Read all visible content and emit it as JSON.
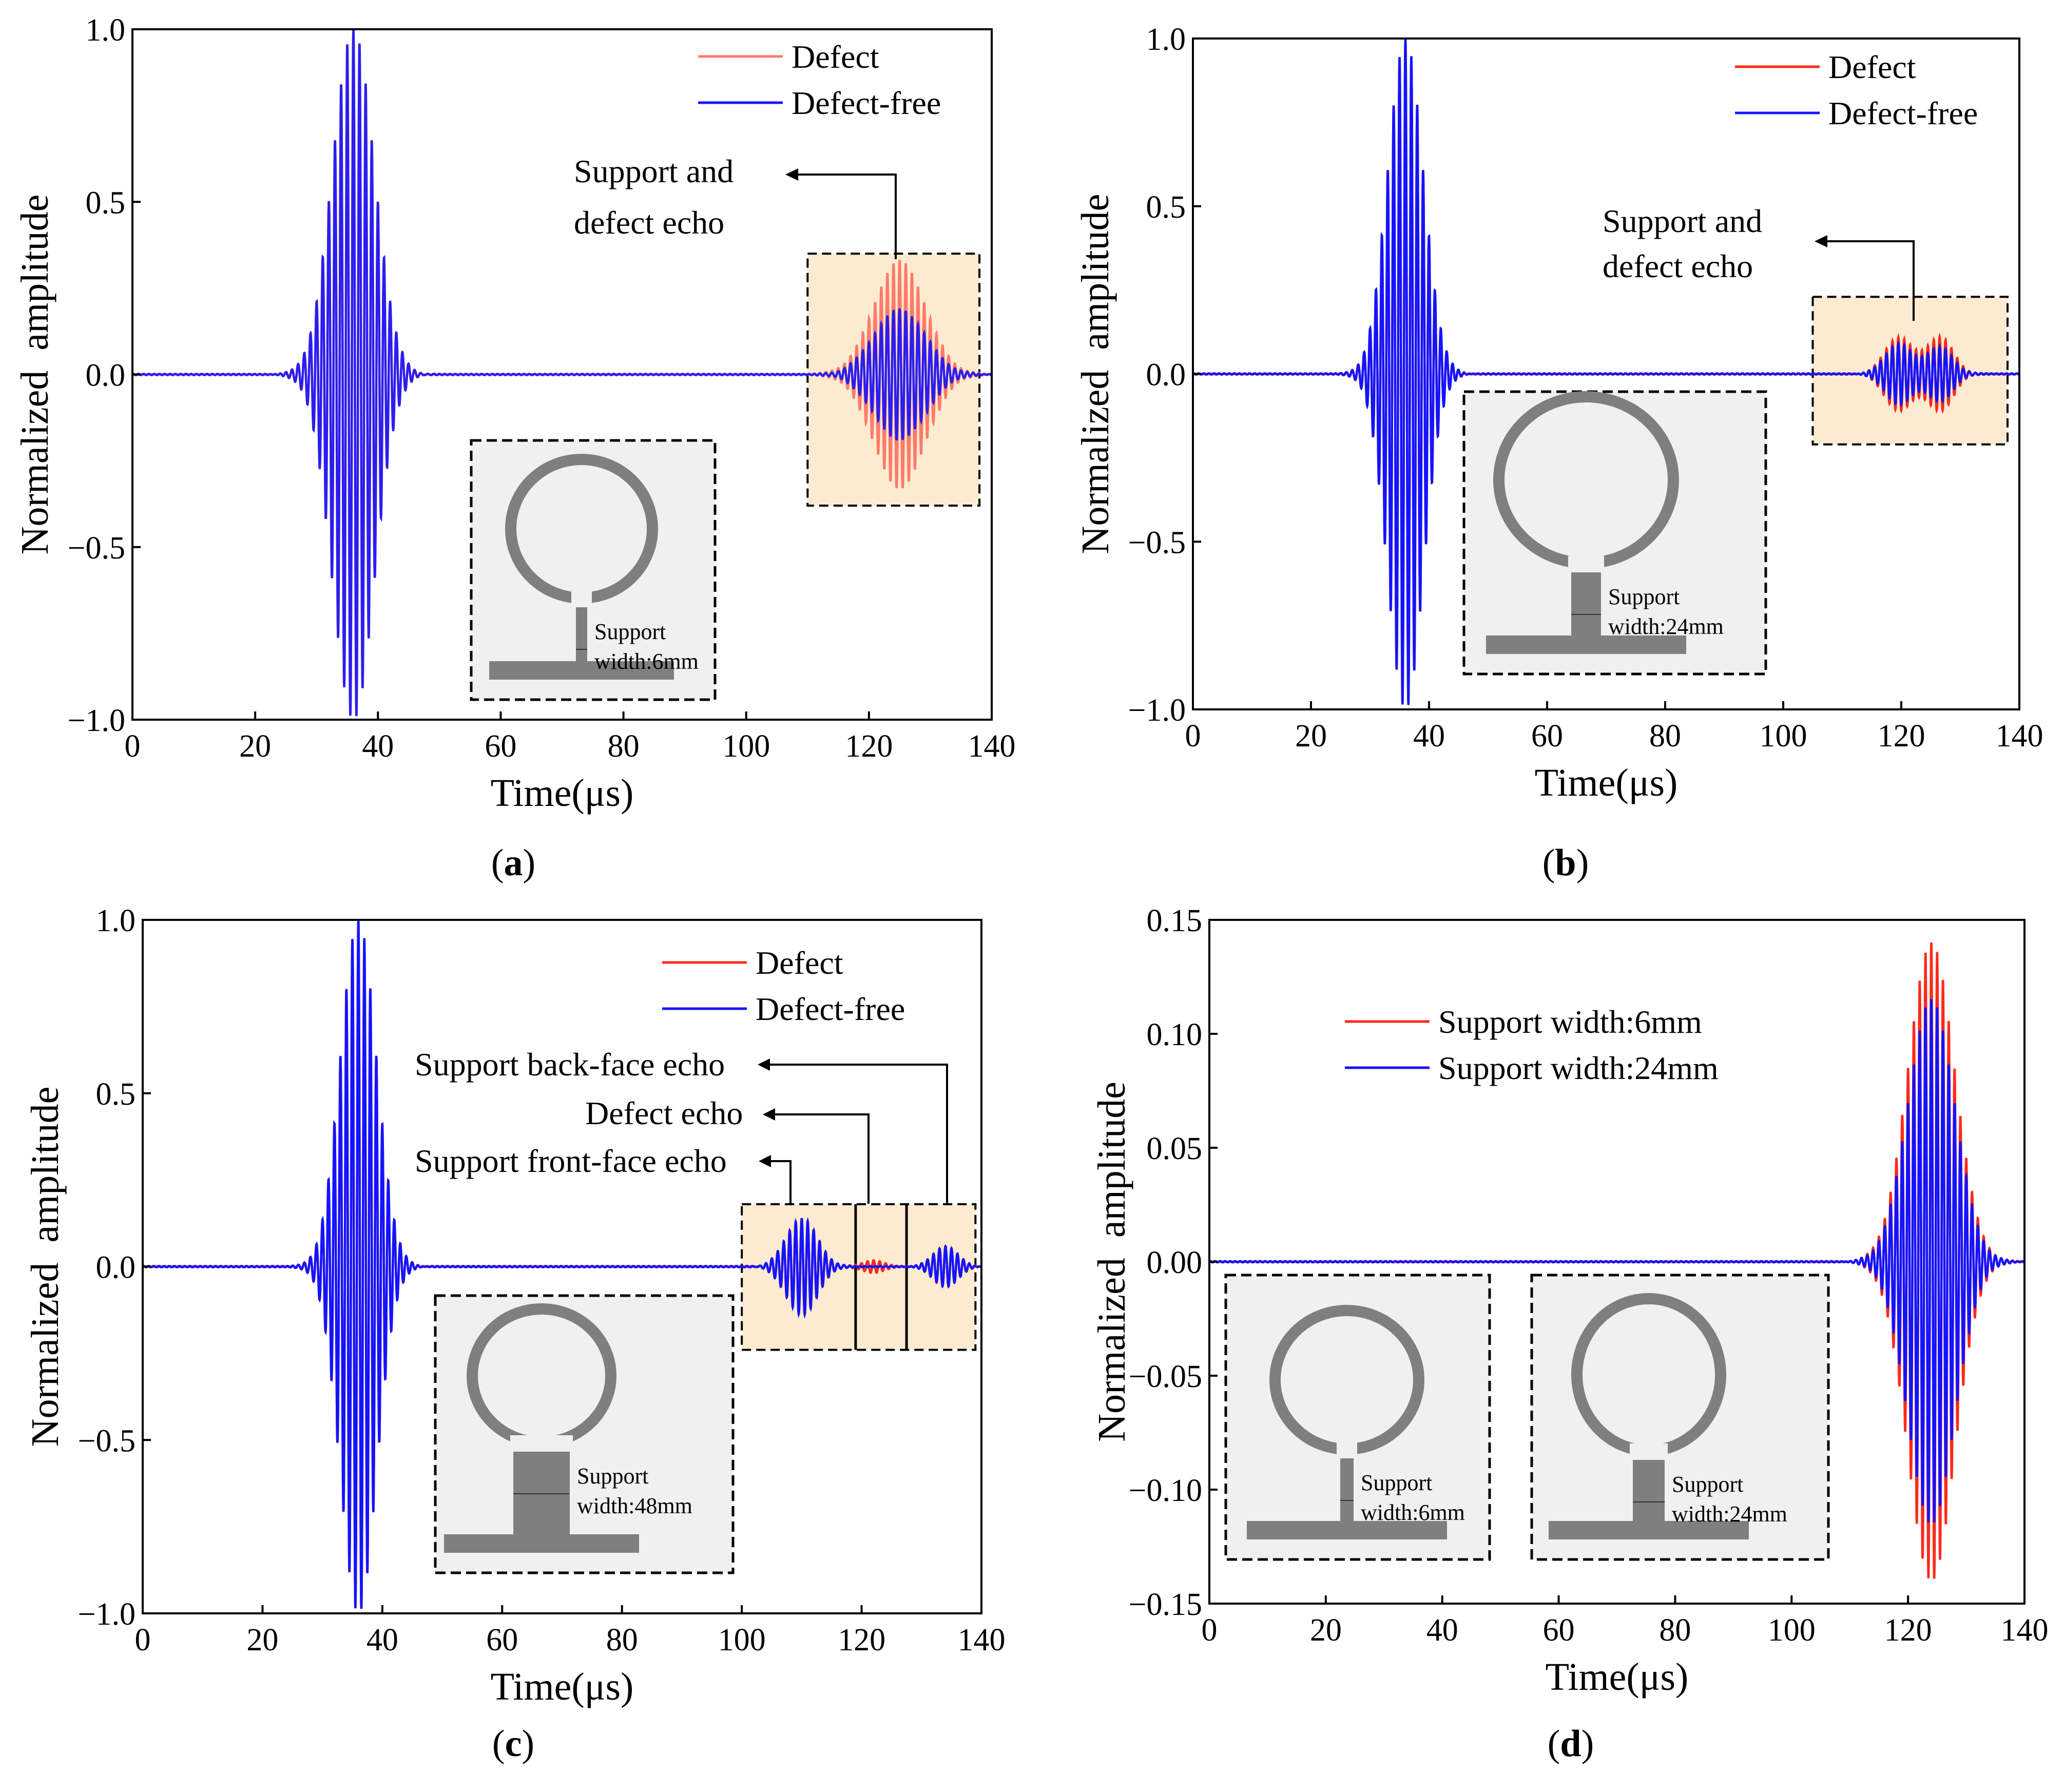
{
  "colors": {
    "defect": "#ff2a1a",
    "defect_light": "#ff7a6a",
    "defect_free": "#1414ff",
    "defect_free_mix": "#6868e8",
    "highlight": "#fcebd0",
    "inset_bg": "#f0f0f0",
    "inset_shape": "#7f7f7f"
  },
  "chart_data": [
    {
      "panel": "a",
      "type": "line",
      "caption": "a",
      "xlabel": "Time(μs)",
      "ylabel": "Normalized amplitude",
      "xlim": [
        0,
        140
      ],
      "ylim": [
        -1.0,
        1.0
      ],
      "xticks": [
        "0",
        "20",
        "40",
        "60",
        "80",
        "100",
        "120",
        "140"
      ],
      "yticks": [
        "−1.0",
        "−0.5",
        "0.0",
        "0.5",
        "1.0"
      ],
      "legend": [
        "Defect",
        "Defect-free"
      ],
      "series": [
        {
          "name": "Defect",
          "packets": [
            {
              "center": 36,
              "width": 3.4,
              "amp": 1.0
            },
            {
              "center": 125,
              "width": 4.2,
              "amp": 0.33
            }
          ]
        },
        {
          "name": "Defect-free",
          "packets": [
            {
              "center": 36,
              "width": 3.4,
              "amp": 1.0
            },
            {
              "center": 125,
              "width": 4.2,
              "amp": 0.19
            }
          ]
        }
      ],
      "highlight": {
        "x": [
          110,
          138
        ],
        "y": [
          -0.38,
          0.35
        ]
      },
      "annotations": [
        {
          "text": [
            "Support and",
            "defect echo"
          ]
        }
      ],
      "inset": {
        "label": [
          "Support",
          "width:6mm"
        ],
        "support_width_mm": 6
      }
    },
    {
      "panel": "b",
      "type": "line",
      "caption": "b",
      "xlabel": "Time(μs)",
      "ylabel": "Normalized amplitude",
      "xlim": [
        0,
        140
      ],
      "ylim": [
        -1.0,
        1.0
      ],
      "xticks": [
        "0",
        "20",
        "40",
        "60",
        "80",
        "100",
        "120",
        "140"
      ],
      "yticks": [
        "−1.0",
        "−0.5",
        "0.0",
        "0.5",
        "1.0"
      ],
      "legend": [
        "Defect",
        "Defect-free"
      ],
      "series": [
        {
          "name": "Defect",
          "packets": [
            {
              "center": 36,
              "width": 3.0,
              "amp": 1.0
            },
            {
              "center": 119.5,
              "width": 2.3,
              "amp": 0.11
            },
            {
              "center": 126.5,
              "width": 2.3,
              "amp": 0.11
            }
          ]
        },
        {
          "name": "Defect-free",
          "packets": [
            {
              "center": 36,
              "width": 3.0,
              "amp": 1.0
            },
            {
              "center": 119.5,
              "width": 2.3,
              "amp": 0.09
            },
            {
              "center": 126.5,
              "width": 2.3,
              "amp": 0.08
            }
          ]
        }
      ],
      "highlight": {
        "x": [
          105,
          138
        ],
        "y": [
          -0.21,
          0.23
        ]
      },
      "annotations": [
        {
          "text": [
            "Support and",
            "defect echo"
          ]
        }
      ],
      "inset": {
        "label": [
          "Support",
          "width:24mm"
        ],
        "support_width_mm": 24
      }
    },
    {
      "panel": "c",
      "type": "line",
      "caption": "c",
      "xlabel": "Time(μs)",
      "ylabel": "Normalized amplitude",
      "xlim": [
        0,
        140
      ],
      "ylim": [
        -1.0,
        1.0
      ],
      "xticks": [
        "0",
        "20",
        "40",
        "60",
        "80",
        "100",
        "120",
        "140"
      ],
      "yticks": [
        "−1.0",
        "−0.5",
        "0.0",
        "0.5",
        "1.0"
      ],
      "legend": [
        "Defect",
        "Defect-free"
      ],
      "series": [
        {
          "name": "Defect",
          "packets": [
            {
              "center": 36,
              "width": 3.0,
              "amp": 1.0
            },
            {
              "center": 110,
              "width": 2.6,
              "amp": 0.14
            },
            {
              "center": 122,
              "width": 1.6,
              "amp": 0.02
            },
            {
              "center": 134,
              "width": 2.0,
              "amp": 0.06
            }
          ]
        },
        {
          "name": "Defect-free",
          "packets": [
            {
              "center": 36,
              "width": 3.0,
              "amp": 1.0
            },
            {
              "center": 110,
              "width": 2.6,
              "amp": 0.14
            },
            {
              "center": 134,
              "width": 2.0,
              "amp": 0.06
            }
          ]
        }
      ],
      "highlight": {
        "x": [
          100,
          139
        ],
        "y": [
          -0.24,
          0.18
        ]
      },
      "annotations": [
        {
          "text": [
            "Support back-face echo"
          ]
        },
        {
          "text": [
            "Defect echo"
          ]
        },
        {
          "text": [
            "Support front-face echo"
          ]
        }
      ],
      "inset": {
        "label": [
          "Support",
          "width:48mm"
        ],
        "support_width_mm": 48
      }
    },
    {
      "panel": "d",
      "type": "line",
      "caption": "d",
      "xlabel": "Time(μs)",
      "ylabel": "Normalized amplitude",
      "xlim": [
        0,
        140
      ],
      "ylim": [
        -0.15,
        0.15
      ],
      "xticks": [
        "0",
        "20",
        "40",
        "60",
        "80",
        "100",
        "120",
        "140"
      ],
      "yticks": [
        "−0.15",
        "−0.10",
        "−0.05",
        "0.00",
        "0.05",
        "0.10",
        "0.15"
      ],
      "legend": [
        "Support width:6mm",
        "Support width:24mm"
      ],
      "series": [
        {
          "name": "Support width:6mm",
          "packets": [
            {
              "center": 124,
              "width": 4.0,
              "amp": 0.14
            }
          ]
        },
        {
          "name": "Support width:24mm",
          "packets": [
            {
              "center": 124,
              "width": 4.0,
              "amp": 0.115
            }
          ]
        }
      ],
      "insets": [
        {
          "label": [
            "Support",
            "width:6mm"
          ],
          "support_width_mm": 6
        },
        {
          "label": [
            "Support",
            "width:24mm"
          ],
          "support_width_mm": 24
        }
      ]
    }
  ]
}
